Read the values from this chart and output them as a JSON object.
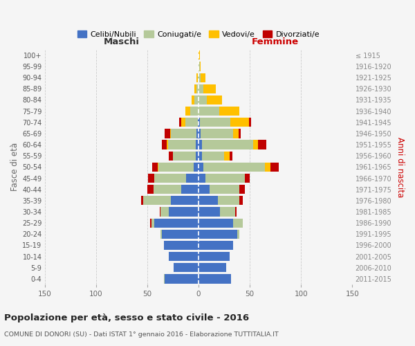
{
  "age_groups": [
    "0-4",
    "5-9",
    "10-14",
    "15-19",
    "20-24",
    "25-29",
    "30-34",
    "35-39",
    "40-44",
    "45-49",
    "50-54",
    "55-59",
    "60-64",
    "65-69",
    "70-74",
    "75-79",
    "80-84",
    "85-89",
    "90-94",
    "95-99",
    "100+"
  ],
  "birth_years": [
    "2011-2015",
    "2006-2010",
    "2001-2005",
    "1996-2000",
    "1991-1995",
    "1986-1990",
    "1981-1985",
    "1976-1980",
    "1971-1975",
    "1966-1970",
    "1961-1965",
    "1956-1960",
    "1951-1955",
    "1946-1950",
    "1941-1945",
    "1936-1940",
    "1931-1935",
    "1926-1930",
    "1921-1925",
    "1916-1920",
    "≤ 1915"
  ],
  "male": {
    "celibe": [
      33,
      24,
      29,
      34,
      36,
      43,
      29,
      27,
      17,
      12,
      5,
      3,
      3,
      2,
      1,
      0,
      0,
      0,
      0,
      0,
      0
    ],
    "coniugato": [
      1,
      0,
      0,
      0,
      1,
      3,
      8,
      27,
      27,
      31,
      34,
      22,
      27,
      25,
      12,
      8,
      4,
      2,
      1,
      0,
      0
    ],
    "vedovo": [
      0,
      0,
      0,
      0,
      0,
      0,
      0,
      0,
      0,
      0,
      1,
      0,
      1,
      1,
      4,
      5,
      3,
      2,
      1,
      0,
      0
    ],
    "divorziato": [
      0,
      0,
      0,
      0,
      0,
      1,
      1,
      2,
      6,
      6,
      5,
      4,
      5,
      5,
      2,
      0,
      0,
      0,
      0,
      0,
      0
    ]
  },
  "female": {
    "nubile": [
      32,
      27,
      30,
      34,
      38,
      34,
      21,
      19,
      11,
      7,
      5,
      3,
      3,
      2,
      1,
      0,
      0,
      0,
      0,
      0,
      0
    ],
    "coniugata": [
      0,
      0,
      0,
      0,
      2,
      9,
      15,
      21,
      29,
      38,
      60,
      22,
      50,
      32,
      30,
      20,
      8,
      5,
      2,
      1,
      0
    ],
    "vedova": [
      0,
      0,
      0,
      0,
      0,
      0,
      0,
      0,
      0,
      0,
      5,
      5,
      5,
      5,
      18,
      20,
      15,
      12,
      5,
      1,
      1
    ],
    "divorziata": [
      0,
      0,
      0,
      0,
      0,
      0,
      1,
      3,
      5,
      5,
      8,
      3,
      8,
      2,
      2,
      0,
      0,
      0,
      0,
      0,
      0
    ]
  },
  "colors": {
    "celibe_nubile": "#4472c4",
    "coniugato_a": "#b5c99a",
    "vedovo_a": "#ffc000",
    "divorziato_a": "#c00000"
  },
  "title": "Popolazione per età, sesso e stato civile - 2016",
  "subtitle": "COMUNE DI DONORI (SU) - Dati ISTAT 1° gennaio 2016 - Elaborazione TUTTITALIA.IT",
  "xlabel_left": "Maschi",
  "xlabel_right": "Femmine",
  "ylabel_left": "Fasce di età",
  "ylabel_right": "Anni di nascita",
  "xlim": 150,
  "legend_labels": [
    "Celibi/Nubili",
    "Coniugati/e",
    "Vedovi/e",
    "Divorziati/e"
  ],
  "background_color": "#f5f5f5"
}
